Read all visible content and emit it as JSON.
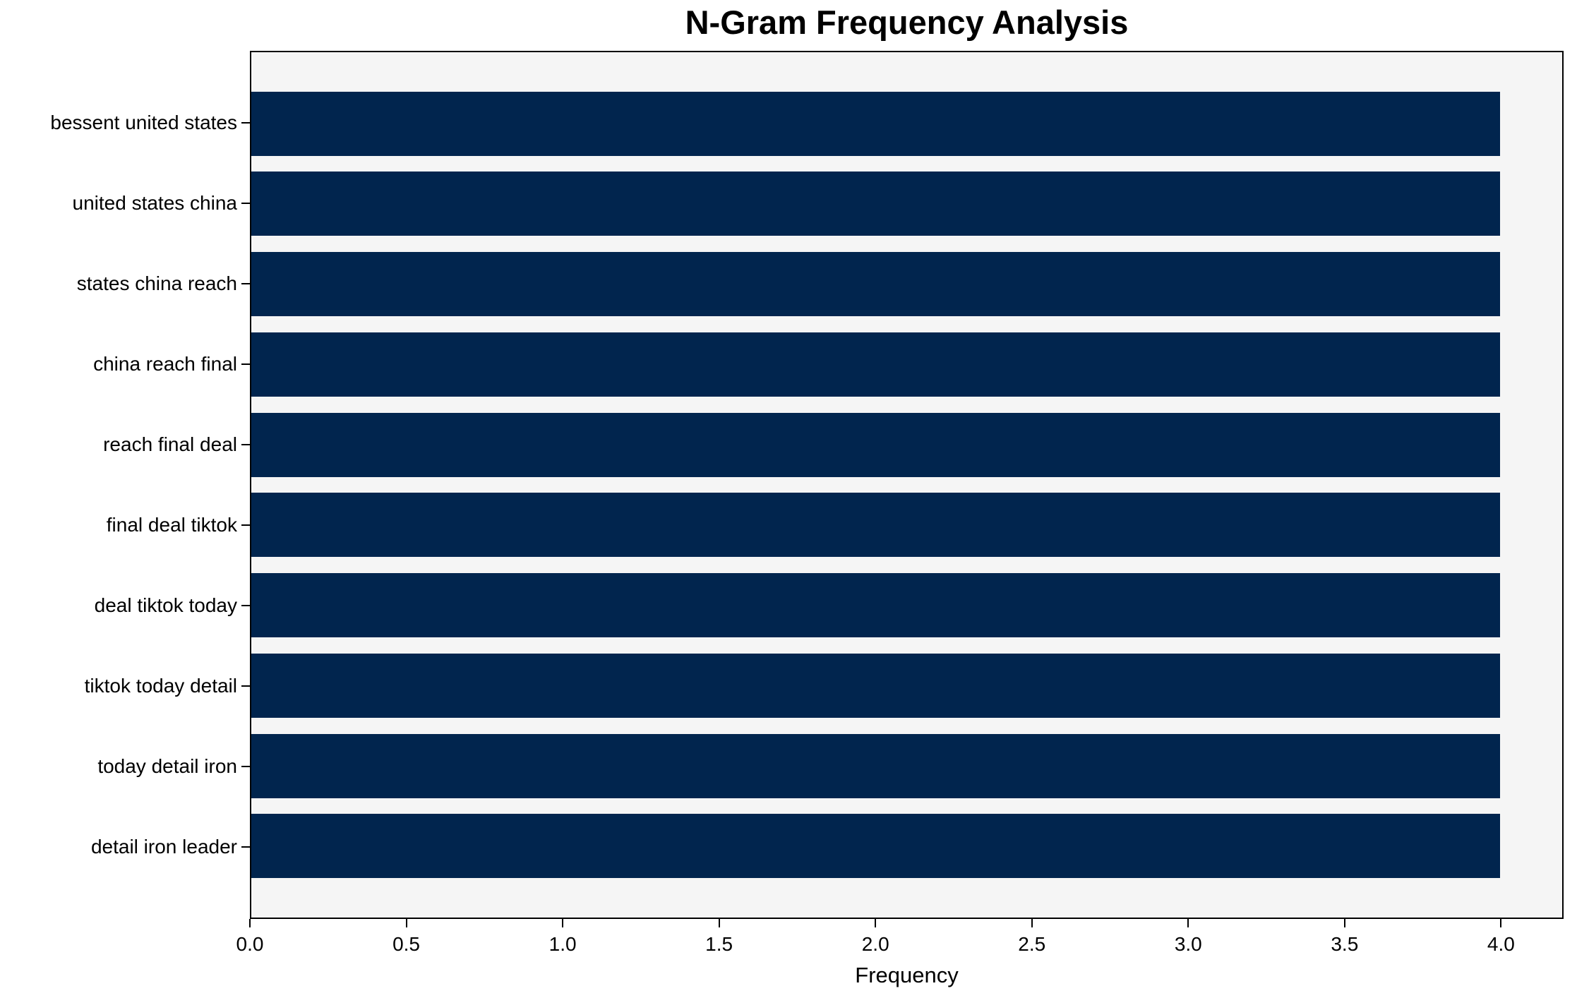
{
  "chart_data": {
    "type": "bar",
    "orientation": "horizontal",
    "title": "N-Gram Frequency Analysis",
    "xlabel": "Frequency",
    "ylabel": "",
    "categories": [
      "bessent united states",
      "united states china",
      "states china reach",
      "china reach final",
      "reach final deal",
      "final deal tiktok",
      "deal tiktok today",
      "tiktok today detail",
      "today detail iron",
      "detail iron leader"
    ],
    "values": [
      4,
      4,
      4,
      4,
      4,
      4,
      4,
      4,
      4,
      4
    ],
    "xlim": [
      0,
      4.2
    ],
    "xticks": [
      0.0,
      0.5,
      1.0,
      1.5,
      2.0,
      2.5,
      3.0,
      3.5,
      4.0
    ],
    "xtick_labels": [
      "0.0",
      "0.5",
      "1.0",
      "1.5",
      "2.0",
      "2.5",
      "3.0",
      "3.5",
      "4.0"
    ],
    "grid": false,
    "legend": null,
    "colors": {
      "bar": "#01254e",
      "plot_background": "#f5f5f5",
      "figure_background": "#ffffff",
      "spine": "#000000",
      "text": "#000000"
    }
  }
}
